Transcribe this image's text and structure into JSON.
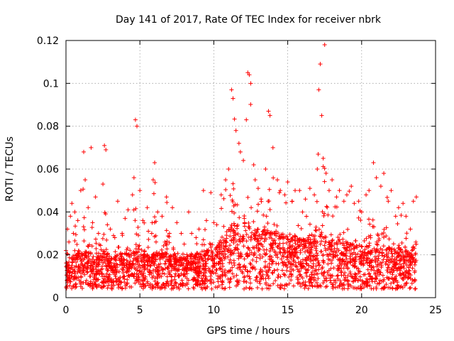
{
  "chart_data": {
    "type": "scatter",
    "title": "Day 141 of 2017, Rate Of TEC Index for receiver nbrk",
    "xlabel": "GPS time / hours",
    "ylabel": "ROTI / TECUs",
    "xlim": [
      0,
      25
    ],
    "ylim": [
      0,
      0.12
    ],
    "xticks": [
      0,
      5,
      10,
      15,
      20,
      25
    ],
    "xtick_labels": [
      "0",
      "5",
      "10",
      "15",
      "20",
      "25"
    ],
    "yticks": [
      0,
      0.02,
      0.04,
      0.06,
      0.08,
      0.1,
      0.12
    ],
    "ytick_labels": [
      "0",
      "0.02",
      "0.04",
      "0.06",
      "0.08",
      "0.1",
      "0.12"
    ],
    "grid": true,
    "marker": "plus",
    "color": "#ff0000",
    "series": [
      {
        "name": "ROTI",
        "x": [
          0.0,
          0.1,
          0.2,
          0.3,
          0.4,
          0.5,
          0.6,
          0.8,
          1.0,
          1.2,
          1.3,
          1.5,
          1.7,
          1.8,
          2.0,
          2.2,
          2.5,
          2.6,
          2.7,
          2.8,
          3.0,
          3.3,
          3.5,
          3.8,
          4.0,
          4.2,
          4.5,
          4.6,
          4.7,
          4.8,
          5.0,
          5.2,
          5.5,
          5.8,
          5.9,
          6.0,
          6.2,
          6.5,
          6.8,
          7.0,
          7.2,
          7.5,
          7.8,
          8.0,
          8.3,
          8.5,
          8.8,
          9.0,
          9.3,
          9.5,
          9.8,
          10.0,
          10.2,
          10.5,
          10.8,
          11.0,
          11.2,
          11.3,
          11.5,
          11.7,
          11.8,
          12.0,
          12.2,
          12.3,
          12.4,
          12.5,
          12.7,
          12.8,
          13.0,
          13.2,
          13.5,
          13.7,
          13.8,
          14.0,
          14.3,
          14.5,
          14.8,
          15.0,
          15.3,
          15.5,
          15.8,
          16.0,
          16.2,
          16.5,
          16.8,
          17.0,
          17.1,
          17.2,
          17.3,
          17.4,
          17.5,
          17.8,
          18.0,
          18.3,
          18.5,
          18.8,
          19.0,
          19.3,
          19.5,
          19.8,
          20.0,
          20.3,
          20.5,
          20.8,
          21.0,
          21.3,
          21.5,
          21.8,
          22.0,
          22.3,
          22.5,
          22.8,
          23.0,
          23.3,
          23.5,
          23.7
        ],
        "y": [
          0.022,
          0.032,
          0.026,
          0.038,
          0.044,
          0.03,
          0.04,
          0.036,
          0.05,
          0.068,
          0.055,
          0.042,
          0.07,
          0.035,
          0.047,
          0.03,
          0.053,
          0.071,
          0.069,
          0.034,
          0.032,
          0.028,
          0.045,
          0.03,
          0.037,
          0.041,
          0.048,
          0.056,
          0.083,
          0.08,
          0.05,
          0.036,
          0.042,
          0.03,
          0.055,
          0.063,
          0.04,
          0.038,
          0.047,
          0.03,
          0.042,
          0.035,
          0.03,
          0.025,
          0.04,
          0.03,
          0.028,
          0.032,
          0.05,
          0.036,
          0.049,
          0.035,
          0.034,
          0.048,
          0.055,
          0.06,
          0.097,
          0.093,
          0.078,
          0.072,
          0.068,
          0.064,
          0.083,
          0.105,
          0.104,
          0.1,
          0.062,
          0.055,
          0.051,
          0.046,
          0.06,
          0.087,
          0.085,
          0.07,
          0.055,
          0.05,
          0.048,
          0.054,
          0.045,
          0.05,
          0.05,
          0.04,
          0.046,
          0.051,
          0.048,
          0.06,
          0.097,
          0.109,
          0.085,
          0.065,
          0.118,
          0.05,
          0.055,
          0.047,
          0.05,
          0.045,
          0.048,
          0.052,
          0.044,
          0.045,
          0.04,
          0.048,
          0.05,
          0.063,
          0.056,
          0.052,
          0.058,
          0.045,
          0.05,
          0.038,
          0.042,
          0.044,
          0.038,
          0.032,
          0.045,
          0.047
        ],
        "y_baseline": [
          0.01,
          0.012,
          0.011,
          0.012,
          0.013,
          0.012,
          0.012,
          0.012,
          0.013,
          0.013,
          0.013,
          0.013,
          0.013,
          0.012,
          0.012,
          0.012,
          0.013,
          0.013,
          0.013,
          0.012,
          0.012,
          0.011,
          0.012,
          0.012,
          0.012,
          0.012,
          0.012,
          0.013,
          0.013,
          0.013,
          0.012,
          0.012,
          0.012,
          0.011,
          0.012,
          0.012,
          0.012,
          0.012,
          0.012,
          0.012,
          0.012,
          0.012,
          0.012,
          0.012,
          0.012,
          0.012,
          0.012,
          0.012,
          0.013,
          0.013,
          0.013,
          0.014,
          0.015,
          0.016,
          0.018,
          0.02,
          0.022,
          0.022,
          0.022,
          0.022,
          0.021,
          0.021,
          0.021,
          0.021,
          0.021,
          0.021,
          0.02,
          0.02,
          0.02,
          0.02,
          0.02,
          0.02,
          0.02,
          0.02,
          0.019,
          0.019,
          0.019,
          0.019,
          0.018,
          0.018,
          0.018,
          0.017,
          0.017,
          0.017,
          0.017,
          0.018,
          0.018,
          0.018,
          0.018,
          0.018,
          0.018,
          0.017,
          0.017,
          0.016,
          0.016,
          0.016,
          0.016,
          0.015,
          0.015,
          0.015,
          0.015,
          0.015,
          0.015,
          0.015,
          0.015,
          0.014,
          0.014,
          0.014,
          0.014,
          0.013,
          0.013,
          0.013,
          0.013,
          0.012,
          0.012,
          0.012
        ]
      }
    ]
  }
}
